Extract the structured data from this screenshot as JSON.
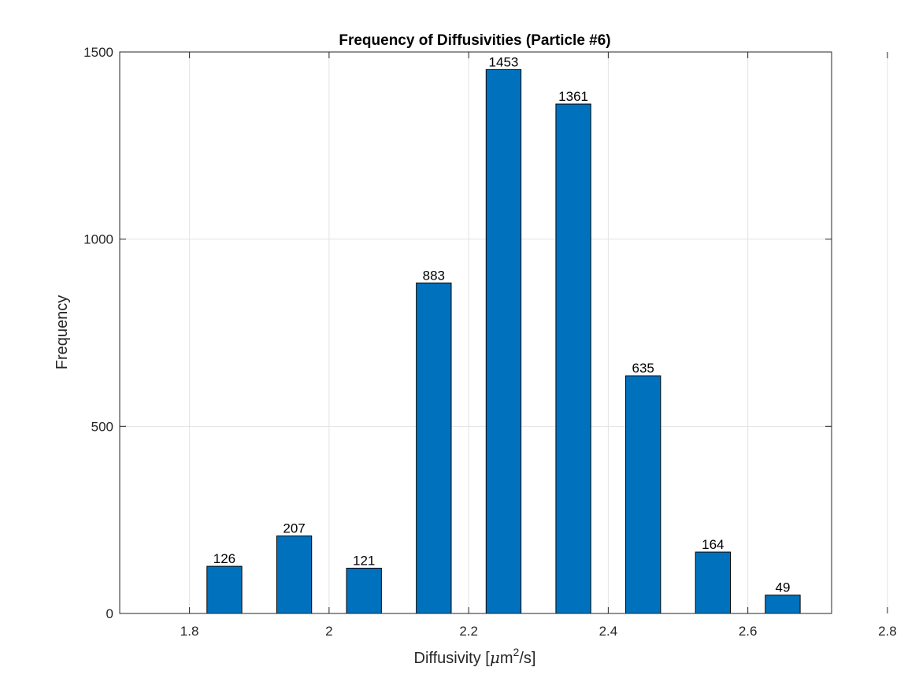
{
  "chart_data": {
    "type": "bar",
    "title": "Frequency of Diffusivities (Particle #6)",
    "xlabel_parts": {
      "pre": "Diffusivity [",
      "mu": "μ",
      "m": "m",
      "sup": "2",
      "post": "/s]"
    },
    "ylabel": "Frequency",
    "x": [
      1.85,
      1.95,
      2.05,
      2.15,
      2.25,
      2.35,
      2.45,
      2.55,
      2.65
    ],
    "values": [
      126,
      207,
      121,
      883,
      1453,
      1361,
      635,
      164,
      49
    ],
    "data_labels": [
      "126",
      "207",
      "121",
      "883",
      "1453",
      "1361",
      "635",
      "164",
      "49"
    ],
    "bar_width": 0.05,
    "xlim": [
      1.7,
      2.72
    ],
    "ylim": [
      0,
      1500
    ],
    "xticks": [
      1.8,
      2.0,
      2.2,
      2.4,
      2.6,
      2.8
    ],
    "xtick_labels": [
      "1.8",
      "2",
      "2.2",
      "2.4",
      "2.6",
      "2.8"
    ],
    "yticks": [
      0,
      500,
      1000,
      1500
    ],
    "ytick_labels": [
      "0",
      "500",
      "1000",
      "1500"
    ],
    "grid": true,
    "bar_color": "#0072BD"
  }
}
